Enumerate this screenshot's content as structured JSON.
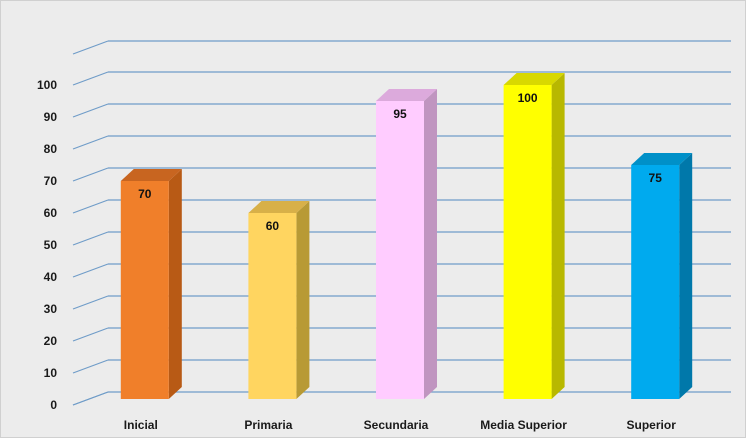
{
  "chart_data": {
    "type": "bar",
    "categories": [
      "Inicial",
      "Primaria",
      "Secundaria",
      "Media Superior",
      "Superior"
    ],
    "values": [
      70,
      60,
      95,
      100,
      75
    ],
    "data_labels": [
      "70",
      "60",
      "95",
      "100",
      "75"
    ],
    "ylim": [
      0,
      100
    ],
    "yticks": [
      "0",
      "10",
      "20",
      "30",
      "40",
      "50",
      "60",
      "70",
      "80",
      "90",
      "100"
    ],
    "grid": true,
    "style": "3d-column",
    "colors": [
      "#f07f2a",
      "#ffd560",
      "#ffccff",
      "#ffff00",
      "#00aaee"
    ],
    "side_colors": [
      "#b85a15",
      "#b89a35",
      "#c095c0",
      "#b8b800",
      "#0078aa"
    ],
    "top_colors": [
      "#c86520",
      "#d8b048",
      "#dcaadc",
      "#d8d800",
      "#0090c8"
    ],
    "grid_color": "#6f9cc8",
    "background": "#ececec"
  }
}
